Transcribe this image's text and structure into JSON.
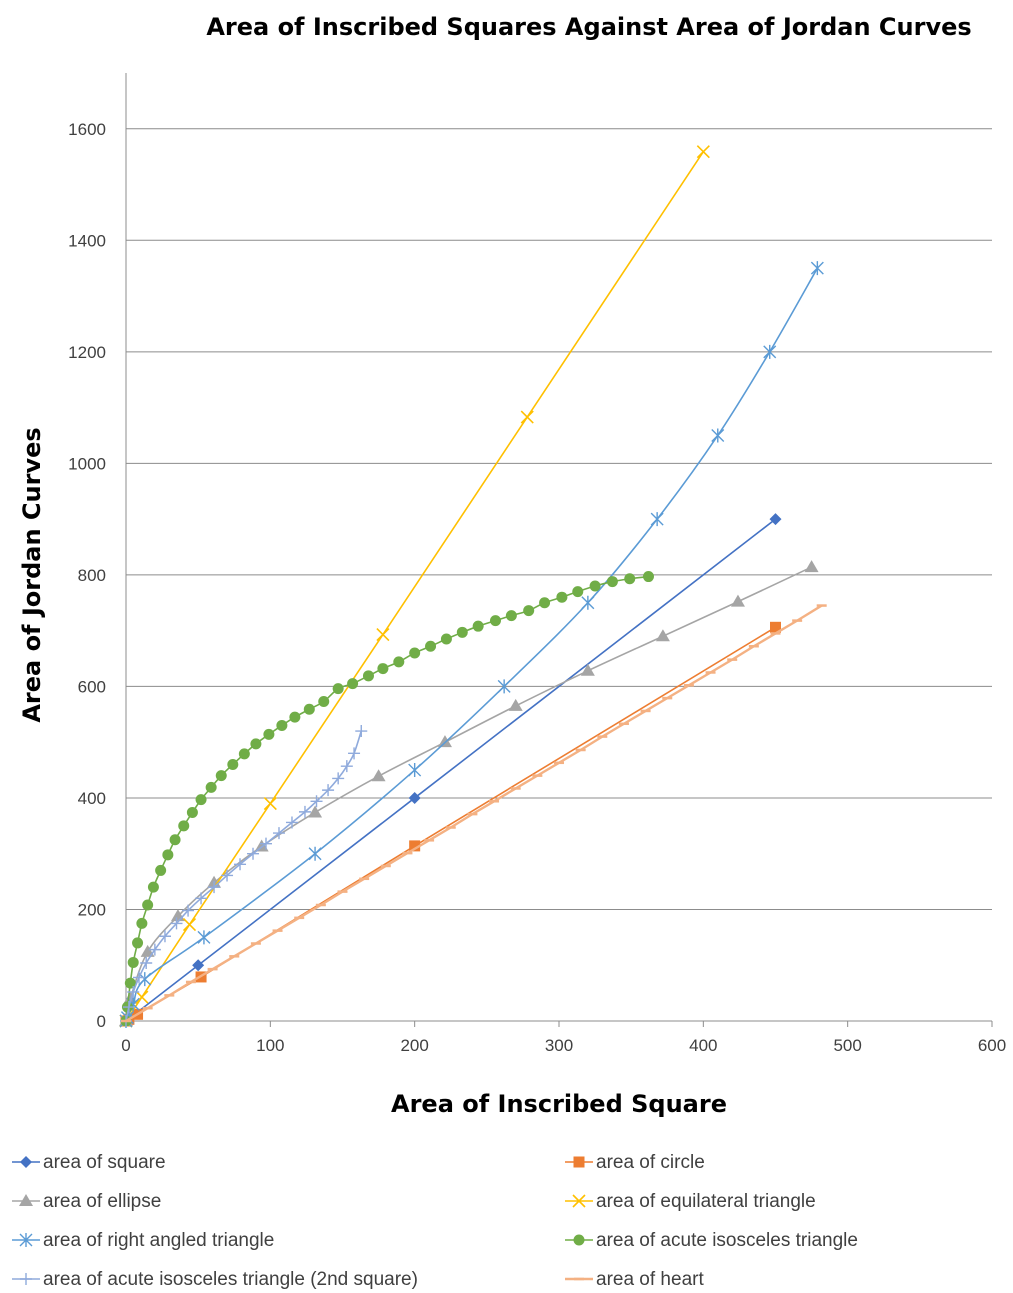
{
  "chart_data": {
    "type": "scatter",
    "title": "Area of Inscribed Squares Against Area of Jordan Curves",
    "xlabel": "Area of Inscribed Square",
    "ylabel": "Area of  Jordan Curves",
    "xlim": [
      0,
      600
    ],
    "ylim": [
      0,
      1700
    ],
    "x_ticks": [
      "0",
      "100",
      "200",
      "300",
      "400",
      "500",
      "600"
    ],
    "y_ticks": [
      "0",
      "200",
      "400",
      "600",
      "800",
      "1000",
      "1200",
      "1400",
      "1600"
    ],
    "grid": "horizontal",
    "legend_position": "bottom",
    "series": [
      {
        "name": "area of square",
        "color": "#4472C4",
        "marker": "diamond",
        "smooth": false,
        "points": [
          [
            0,
            0
          ],
          [
            50,
            100
          ],
          [
            200,
            400
          ],
          [
            450,
            900
          ]
        ]
      },
      {
        "name": "area of circle",
        "color": "#ED7D31",
        "marker": "square",
        "smooth": false,
        "points": [
          [
            0,
            0
          ],
          [
            2,
            3
          ],
          [
            8,
            12
          ],
          [
            52,
            79
          ],
          [
            200,
            314
          ],
          [
            450,
            706
          ]
        ]
      },
      {
        "name": "area of ellipse",
        "color": "#A5A5A5",
        "marker": "triangle",
        "smooth": true,
        "points": [
          [
            0,
            0
          ],
          [
            3,
            40
          ],
          [
            15,
            124
          ],
          [
            36,
            188
          ],
          [
            61,
            248
          ],
          [
            94,
            313
          ],
          [
            131,
            374
          ],
          [
            175,
            439
          ],
          [
            221,
            500
          ],
          [
            270,
            565
          ],
          [
            320,
            628
          ],
          [
            372,
            690
          ],
          [
            424,
            752
          ],
          [
            475,
            814
          ]
        ]
      },
      {
        "name": "area of equilateral triangle",
        "color": "#FFC000",
        "marker": "x",
        "smooth": false,
        "points": [
          [
            0,
            0
          ],
          [
            11,
            43
          ],
          [
            44,
            173
          ],
          [
            100,
            390
          ],
          [
            178,
            693
          ],
          [
            278,
            1083
          ],
          [
            400,
            1559
          ]
        ]
      },
      {
        "name": "area of right angled triangle",
        "color": "#5B9BD5",
        "marker": "star",
        "smooth": true,
        "points": [
          [
            0,
            0
          ],
          [
            1,
            6
          ],
          [
            5,
            30
          ],
          [
            13,
            75
          ],
          [
            54,
            150
          ],
          [
            131,
            300
          ],
          [
            200,
            450
          ],
          [
            262,
            600
          ],
          [
            320,
            750
          ],
          [
            368,
            900
          ],
          [
            410,
            1050
          ],
          [
            446,
            1200
          ],
          [
            479,
            1350
          ]
        ]
      },
      {
        "name": "area of acute isosceles triangle",
        "color": "#70AD47",
        "marker": "circle",
        "smooth": true,
        "points": [
          [
            0,
            0
          ],
          [
            1,
            25
          ],
          [
            3,
            68
          ],
          [
            5,
            105
          ],
          [
            8,
            140
          ],
          [
            11,
            175
          ],
          [
            15,
            208
          ],
          [
            19,
            240
          ],
          [
            24,
            270
          ],
          [
            29,
            298
          ],
          [
            34,
            325
          ],
          [
            40,
            350
          ],
          [
            46,
            374
          ],
          [
            52,
            397
          ],
          [
            59,
            419
          ],
          [
            66,
            440
          ],
          [
            74,
            460
          ],
          [
            82,
            479
          ],
          [
            90,
            497
          ],
          [
            99,
            514
          ],
          [
            108,
            530
          ],
          [
            117,
            545
          ],
          [
            127,
            559
          ],
          [
            137,
            573
          ],
          [
            147,
            596
          ],
          [
            157,
            605
          ],
          [
            168,
            619
          ],
          [
            178,
            632
          ],
          [
            189,
            644
          ],
          [
            200,
            660
          ],
          [
            211,
            672
          ],
          [
            222,
            685
          ],
          [
            233,
            697
          ],
          [
            244,
            708
          ],
          [
            256,
            718
          ],
          [
            267,
            727
          ],
          [
            279,
            736
          ],
          [
            290,
            750
          ],
          [
            302,
            760
          ],
          [
            313,
            770
          ],
          [
            325,
            780
          ],
          [
            337,
            788
          ],
          [
            349,
            793
          ],
          [
            362,
            797
          ]
        ]
      },
      {
        "name": "area of acute isosceles triangle (2nd square)",
        "color": "#8FAADC",
        "marker": "plus",
        "smooth": true,
        "points": [
          [
            0,
            0
          ],
          [
            2,
            25
          ],
          [
            5,
            52
          ],
          [
            9,
            78
          ],
          [
            14,
            104
          ],
          [
            20,
            128
          ],
          [
            27,
            152
          ],
          [
            35,
            175
          ],
          [
            43,
            198
          ],
          [
            52,
            220
          ],
          [
            61,
            240
          ],
          [
            70,
            261
          ],
          [
            79,
            281
          ],
          [
            88,
            300
          ],
          [
            97,
            318
          ],
          [
            106,
            337
          ],
          [
            115,
            356
          ],
          [
            124,
            375
          ],
          [
            132,
            394
          ],
          [
            140,
            414
          ],
          [
            147,
            435
          ],
          [
            153,
            457
          ],
          [
            158,
            480
          ],
          [
            163,
            520
          ]
        ]
      },
      {
        "name": "area of heart",
        "color": "#F4B183",
        "marker": "dash",
        "smooth": false,
        "points": [
          [
            0,
            0
          ],
          [
            15,
            23
          ],
          [
            30,
            46
          ],
          [
            45,
            70
          ],
          [
            60,
            93
          ],
          [
            75,
            116
          ],
          [
            90,
            139
          ],
          [
            105,
            162
          ],
          [
            120,
            185
          ],
          [
            135,
            208
          ],
          [
            150,
            232
          ],
          [
            165,
            255
          ],
          [
            180,
            278
          ],
          [
            195,
            301
          ],
          [
            210,
            324
          ],
          [
            225,
            347
          ],
          [
            240,
            371
          ],
          [
            255,
            394
          ],
          [
            270,
            417
          ],
          [
            285,
            440
          ],
          [
            300,
            463
          ],
          [
            315,
            486
          ],
          [
            330,
            510
          ],
          [
            345,
            533
          ],
          [
            360,
            556
          ],
          [
            375,
            579
          ],
          [
            390,
            602
          ],
          [
            405,
            625
          ],
          [
            420,
            648
          ],
          [
            435,
            672
          ],
          [
            450,
            695
          ],
          [
            465,
            718
          ],
          [
            482,
            745
          ]
        ]
      }
    ]
  }
}
